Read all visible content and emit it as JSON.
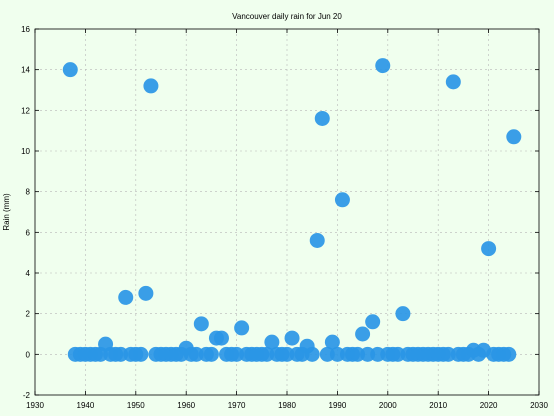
{
  "chart_data": {
    "type": "scatter",
    "title": "Vancouver daily rain for Jun 20",
    "xlabel": "",
    "ylabel": "Rain (mm)",
    "xlim": [
      1930,
      2030
    ],
    "ylim": [
      -2,
      16
    ],
    "x_ticks": [
      1930,
      1940,
      1950,
      1960,
      1970,
      1980,
      1990,
      2000,
      2010,
      2020,
      2030
    ],
    "y_ticks": [
      -2,
      0,
      2,
      4,
      6,
      8,
      10,
      12,
      14,
      16
    ],
    "grid": true,
    "point_color": "#2a96e6",
    "x": [
      1937,
      1938,
      1939,
      1940,
      1941,
      1942,
      1943,
      1944,
      1945,
      1946,
      1947,
      1948,
      1949,
      1950,
      1951,
      1952,
      1953,
      1954,
      1955,
      1956,
      1957,
      1958,
      1959,
      1960,
      1961,
      1962,
      1963,
      1964,
      1965,
      1966,
      1967,
      1968,
      1969,
      1970,
      1971,
      1972,
      1973,
      1974,
      1975,
      1976,
      1977,
      1978,
      1979,
      1980,
      1981,
      1982,
      1983,
      1984,
      1985,
      1986,
      1987,
      1988,
      1989,
      1990,
      1991,
      1992,
      1993,
      1994,
      1995,
      1996,
      1997,
      1998,
      1999,
      2000,
      2001,
      2002,
      2003,
      2004,
      2005,
      2006,
      2007,
      2008,
      2009,
      2010,
      2011,
      2012,
      2013,
      2014,
      2015,
      2016,
      2017,
      2018,
      2019,
      2020,
      2021,
      2022,
      2023,
      2024,
      2025
    ],
    "y": [
      14.0,
      0,
      0,
      0,
      0,
      0,
      0,
      0.5,
      0,
      0,
      0,
      2.8,
      0,
      0,
      0,
      3.0,
      13.2,
      0,
      0,
      0,
      0,
      0,
      0,
      0.3,
      0,
      0,
      1.5,
      0,
      0,
      0.8,
      0.8,
      0,
      0,
      0,
      1.3,
      0,
      0,
      0,
      0,
      0,
      0.6,
      0,
      0,
      0,
      0.8,
      0,
      0,
      0.4,
      0,
      5.6,
      11.6,
      0,
      0.6,
      0,
      7.6,
      0,
      0,
      0,
      1.0,
      0,
      1.6,
      0,
      14.2,
      0,
      0,
      0,
      2.0,
      0,
      0,
      0,
      0,
      0,
      0,
      0,
      0,
      0,
      13.4,
      0,
      0,
      0,
      0.2,
      0,
      0.2,
      5.2,
      0,
      0,
      0,
      0,
      10.7
    ]
  }
}
